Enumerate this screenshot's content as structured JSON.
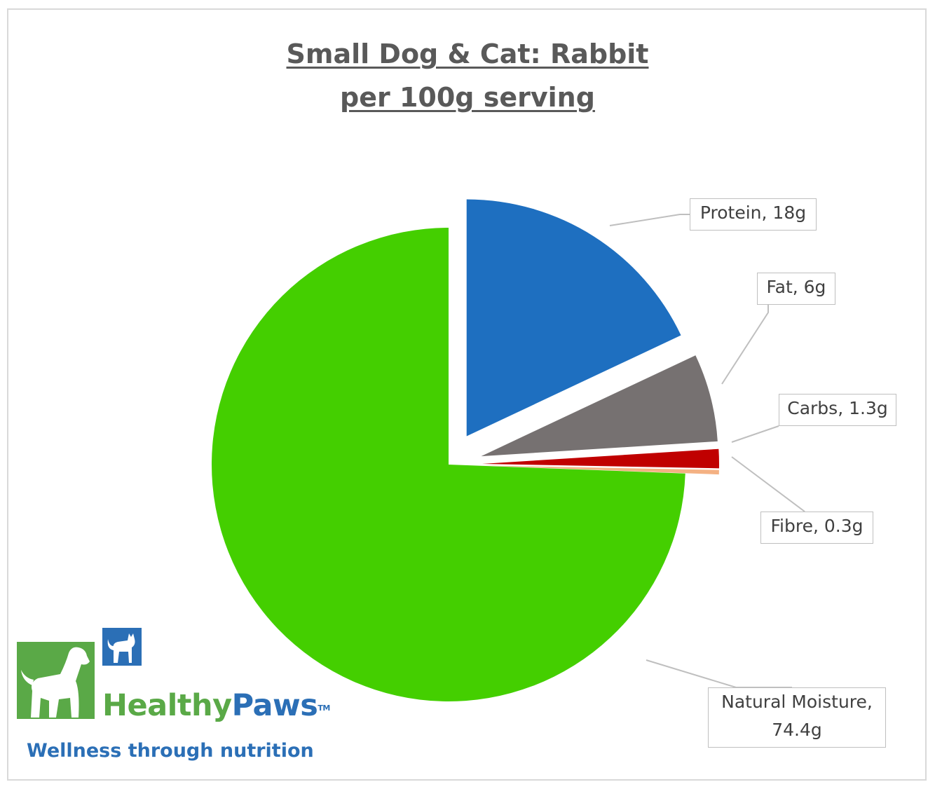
{
  "chart_data": {
    "type": "pie",
    "title_line1": "Small Dog & Cat: Rabbit",
    "title_line2": "per 100g serving",
    "exploded": true,
    "slices": [
      {
        "label": "Protein",
        "value": 18,
        "data_label": "Protein, 18g",
        "color": "#1e6fc0"
      },
      {
        "label": "Fat",
        "value": 6,
        "data_label": "Fat, 6g",
        "color": "#767171"
      },
      {
        "label": "Carbs",
        "value": 1.3,
        "data_label": "Carbs, 1.3g",
        "color": "#c00000"
      },
      {
        "label": "Fibre",
        "value": 0.3,
        "data_label": "Fibre, 0.3g",
        "color": "#f4b183"
      },
      {
        "label": "Natural Moisture",
        "value": 74.4,
        "data_label_line1": "Natural Moisture,",
        "data_label_line2": "74.4g",
        "color": "#44cf00"
      }
    ]
  },
  "logo": {
    "brand_part1": "Healthy",
    "brand_part2": "Paws",
    "trademark": "TM",
    "tagline": "Wellness through nutrition",
    "green": "#5aa947",
    "blue": "#2b6fb6",
    "dog_icon": "dog-silhouette-icon",
    "cat_icon": "cat-silhouette-icon"
  }
}
